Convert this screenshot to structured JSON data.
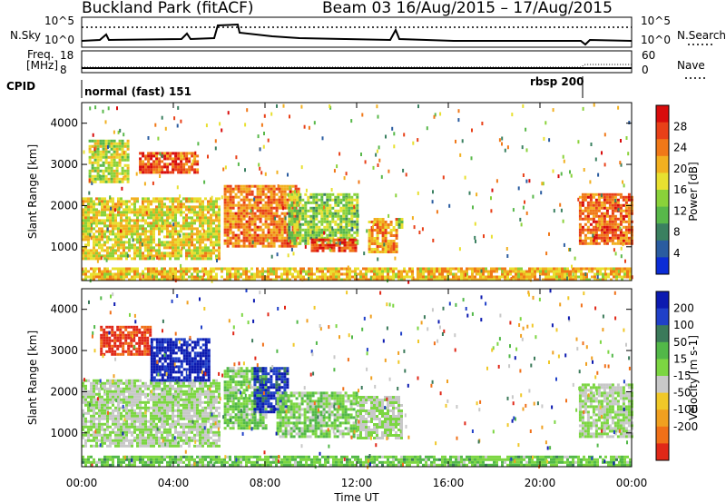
{
  "header": {
    "title": "Buckland Park (fitACF)",
    "beam_info": "Beam 03 16/Aug/2015 – 17/Aug/2015"
  },
  "summary_panel": {
    "left_labels": {
      "nsky": "N.Sky",
      "freq_line1": "Freq.",
      "freq_line2": "[MHz]",
      "cpid": "CPID"
    },
    "right_labels": {
      "nsearch": "N.Search",
      "nave": "Nave"
    },
    "noise_ticks_left": [
      "10^5",
      "10^0"
    ],
    "noise_ticks_right": [
      "10^5",
      "10^0"
    ],
    "freq_ticks": [
      "18",
      "8"
    ],
    "nave_ticks": [
      "60",
      "0"
    ],
    "cpid_modes": [
      {
        "label": "normal (fast) 151",
        "start_hour": 0,
        "end_hour": 21.9
      },
      {
        "label": "rbsp 200",
        "start_hour": 21.9,
        "end_hour": 24
      }
    ]
  },
  "x_axis": {
    "label": "Time UT",
    "ticks": [
      "00:00",
      "04:00",
      "08:00",
      "12:00",
      "16:00",
      "20:00",
      "00:00"
    ],
    "range_hours": [
      0,
      24
    ]
  },
  "chart_data": [
    {
      "type": "heatmap",
      "title": "Power",
      "ylabel": "Slant Range [km]",
      "y_ticks": [
        "1000",
        "2000",
        "3000",
        "4000"
      ],
      "ylim": [
        180,
        4500
      ],
      "colorbar": {
        "label": "Power [dB]",
        "ticks": [
          "4",
          "8",
          "12",
          "16",
          "20",
          "24",
          "28"
        ],
        "colors": [
          "#0b2cd6",
          "#2a5ca0",
          "#3a8060",
          "#58b84a",
          "#8ad23a",
          "#e8e030",
          "#f2b020",
          "#f07818",
          "#e84018",
          "#d80c0c"
        ]
      },
      "regions": [
        {
          "t0": 0.0,
          "t1": 6.0,
          "r0": 700,
          "r1": 2200,
          "value": 18
        },
        {
          "t0": 0.3,
          "t1": 2.0,
          "r0": 2600,
          "r1": 3600,
          "value": 16
        },
        {
          "t0": 2.5,
          "t1": 5.0,
          "r0": 2800,
          "r1": 3300,
          "value": 26
        },
        {
          "t0": 6.2,
          "t1": 9.5,
          "r0": 1000,
          "r1": 2500,
          "value": 24
        },
        {
          "t0": 9.0,
          "t1": 12.0,
          "r0": 1100,
          "r1": 2300,
          "value": 14
        },
        {
          "t0": 10.0,
          "t1": 12.0,
          "r0": 900,
          "r1": 1200,
          "value": 27
        },
        {
          "t0": 12.5,
          "t1": 13.8,
          "r0": 900,
          "r1": 1700,
          "value": 22
        },
        {
          "t0": 13.8,
          "t1": 14.0,
          "r0": 1500,
          "r1": 1700,
          "value": 14
        },
        {
          "t0": 21.7,
          "t1": 24.0,
          "r0": 1100,
          "r1": 2300,
          "value": 25
        },
        {
          "t0": 0.0,
          "t1": 24.0,
          "r0": 200,
          "r1": 500,
          "value": 20
        }
      ]
    },
    {
      "type": "heatmap",
      "title": "Velocity",
      "ylabel": "Slant Range [km]",
      "y_ticks": [
        "1000",
        "2000",
        "3000",
        "4000"
      ],
      "ylim": [
        180,
        4500
      ],
      "colorbar": {
        "label": "Velocity [m s-1]",
        "ticks": [
          "200",
          "100",
          "50",
          "15",
          "-15",
          "-50",
          "-100",
          "-200"
        ],
        "colors": [
          "#0c1ab0",
          "#2040c8",
          "#3b7a5a",
          "#52b848",
          "#7cd642",
          "#c8c8c8",
          "#f0c828",
          "#f0a020",
          "#f07018",
          "#e02818"
        ]
      },
      "regions": [
        {
          "t0": 0.0,
          "t1": 6.0,
          "r0": 700,
          "r1": 2300,
          "value": 0
        },
        {
          "t0": 0.8,
          "t1": 3.0,
          "r0": 2900,
          "r1": 3600,
          "value": -180
        },
        {
          "t0": 3.0,
          "t1": 5.5,
          "r0": 2300,
          "r1": 3300,
          "value": 180
        },
        {
          "t0": 6.2,
          "t1": 8.0,
          "r0": 1100,
          "r1": 2600,
          "value": 30
        },
        {
          "t0": 7.5,
          "t1": 9.0,
          "r0": 1500,
          "r1": 2600,
          "value": 150
        },
        {
          "t0": 8.5,
          "t1": 12.0,
          "r0": 900,
          "r1": 2000,
          "value": 25
        },
        {
          "t0": 12.0,
          "t1": 14.0,
          "r0": 900,
          "r1": 1900,
          "value": 0
        },
        {
          "t0": 21.7,
          "t1": 24.0,
          "r0": 900,
          "r1": 2200,
          "value": 0
        },
        {
          "t0": 0.0,
          "t1": 24.0,
          "r0": 200,
          "r1": 450,
          "value": 40
        }
      ]
    }
  ]
}
